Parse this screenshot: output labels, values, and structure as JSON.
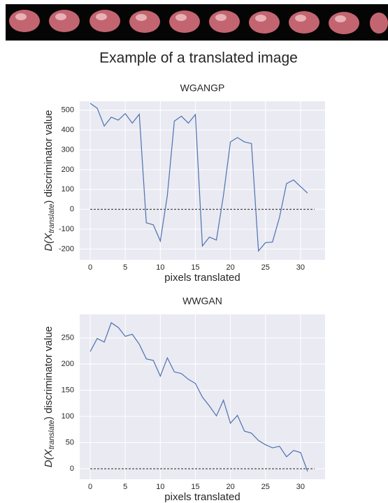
{
  "page_title": "Example of a translated image",
  "chart_data": [
    {
      "type": "line",
      "title": "WGANGP",
      "xlabel": "pixels translated",
      "ylabel": {
        "main": "D(X",
        "sub": "translate",
        "rest": ") discriminator value"
      },
      "x": [
        0,
        1,
        2,
        3,
        4,
        5,
        6,
        7,
        8,
        9,
        10,
        11,
        12,
        13,
        14,
        15,
        16,
        17,
        18,
        19,
        20,
        21,
        22,
        23,
        24,
        25,
        26,
        27,
        28,
        29,
        30,
        31
      ],
      "series": [
        {
          "color": "#4c72b0",
          "values": [
            535,
            510,
            420,
            465,
            450,
            483,
            435,
            480,
            -68,
            -78,
            -160,
            70,
            445,
            470,
            435,
            478,
            -185,
            -140,
            -155,
            70,
            340,
            362,
            340,
            332,
            -210,
            -168,
            -165,
            -40,
            130,
            148,
            115,
            82
          ]
        }
      ],
      "hline": {
        "y": 0,
        "xmin": 0,
        "xmax": 32
      },
      "xlim": [
        -1.5,
        33.5
      ],
      "ylim": [
        -255,
        545
      ],
      "xticks": [
        0,
        5,
        10,
        15,
        20,
        25,
        30
      ],
      "yticks": [
        -200,
        -100,
        0,
        100,
        200,
        300,
        400,
        500
      ],
      "grid": true
    },
    {
      "type": "line",
      "title": "WWGAN",
      "xlabel": "pixels translated",
      "ylabel": {
        "main": "D(X",
        "sub": "translate",
        "rest": ") discriminator value"
      },
      "x": [
        0,
        1,
        2,
        3,
        4,
        5,
        6,
        7,
        8,
        9,
        10,
        11,
        12,
        13,
        14,
        15,
        16,
        17,
        18,
        19,
        20,
        21,
        22,
        23,
        24,
        25,
        26,
        27,
        28,
        29,
        30,
        31
      ],
      "series": [
        {
          "color": "#4c72b0",
          "values": [
            224,
            249,
            242,
            279,
            270,
            253,
            257,
            238,
            210,
            207,
            177,
            212,
            185,
            182,
            171,
            163,
            137,
            120,
            101,
            131,
            87,
            102,
            72,
            68,
            54,
            46,
            40,
            43,
            23,
            35,
            31,
            -5
          ]
        }
      ],
      "hline": {
        "y": 0,
        "xmin": 0,
        "xmax": 32
      },
      "xlim": [
        -1.5,
        33.5
      ],
      "ylim": [
        -20,
        295
      ],
      "xticks": [
        0,
        5,
        10,
        15,
        20,
        25,
        30
      ],
      "yticks": [
        0,
        50,
        100,
        150,
        200,
        250
      ],
      "grid": true
    }
  ]
}
